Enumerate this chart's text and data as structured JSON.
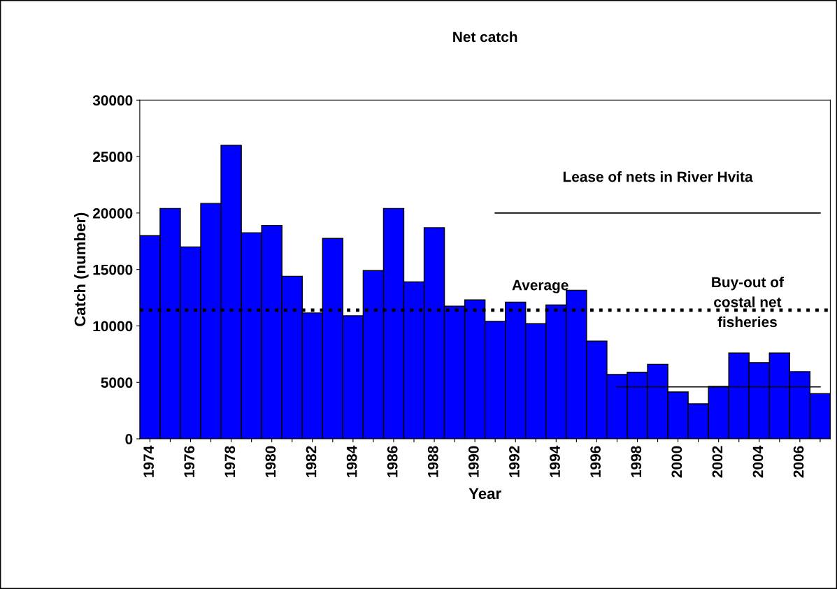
{
  "chart_data": {
    "type": "bar",
    "title": "Net catch",
    "xlabel": "Year",
    "ylabel": "Catch (number)",
    "categories": [
      "1974",
      null,
      "1976",
      null,
      "1978",
      null,
      "1980",
      null,
      "1982",
      null,
      "1984",
      null,
      "1986",
      null,
      "1988",
      null,
      "1990",
      null,
      "1992",
      null,
      "1994",
      null,
      "1996",
      null,
      "1998",
      null,
      "2000",
      null,
      "2002",
      null,
      "2004",
      null,
      "2006",
      null
    ],
    "series": [
      {
        "color": "#0000ff",
        "values": [
          18000,
          20400,
          17000,
          20850,
          26000,
          18250,
          18900,
          14400,
          11150,
          17750,
          10900,
          14900,
          20400,
          13900,
          18700,
          11750,
          12300,
          10400,
          12100,
          10200,
          11850,
          13150,
          8650,
          5700,
          5900,
          6600,
          4150,
          3100,
          4650,
          7600,
          6750,
          7600,
          5950,
          4000
        ]
      },
      {
        "type": "line",
        "color": "#000000",
        "values": [
          null,
          null,
          null,
          null,
          null,
          null,
          null,
          null,
          null,
          null,
          null,
          null,
          null,
          null,
          null,
          null,
          null,
          20000,
          20000,
          20000,
          20000,
          20000,
          20000,
          20000,
          20000,
          20000,
          20000,
          20000,
          20000,
          20000,
          20000,
          20000,
          20000,
          20000
        ]
      },
      {
        "type": "line",
        "color": "#000000",
        "values": [
          null,
          null,
          null,
          null,
          null,
          null,
          null,
          null,
          null,
          null,
          null,
          null,
          null,
          null,
          null,
          null,
          null,
          null,
          null,
          null,
          null,
          null,
          null,
          4600,
          4600,
          4600,
          4600,
          4600,
          4600,
          4600,
          4600,
          4600,
          4600,
          4600
        ]
      }
    ],
    "ylim": [
      0,
      30000
    ],
    "yticks": [
      0,
      5000,
      10000,
      15000,
      20000,
      25000,
      30000
    ],
    "grid": false,
    "ref_lines": [
      {
        "axis": "y",
        "value": 11400,
        "label": "Average",
        "line_style": "dotted",
        "color": "#000000"
      }
    ],
    "annotations": [
      "Lease of nets in River Hvita",
      "Buy-out of\ncostal net\nfisheries"
    ]
  }
}
